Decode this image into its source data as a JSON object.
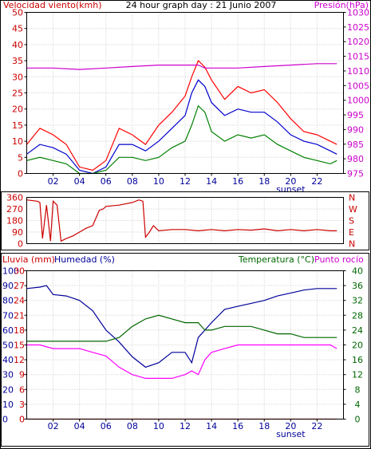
{
  "chart_data": [
    {
      "type": "line",
      "title": "24 hour graph day : 21 Junio 2007",
      "left_label": "Velocidad viento(kmh)",
      "right_label": "Presión(hPa)",
      "x_ticks": [
        "02",
        "04",
        "06",
        "08",
        "10",
        "12",
        "14",
        "16",
        "18",
        "20",
        "22"
      ],
      "x_note": "sunset",
      "x_note_hour": 20,
      "y_left": {
        "min": 0,
        "max": 50,
        "ticks": [
          0,
          5,
          10,
          15,
          20,
          25,
          30,
          35,
          40,
          45,
          50
        ]
      },
      "y_right": {
        "min": 975,
        "max": 1030,
        "ticks": [
          975,
          980,
          985,
          990,
          995,
          1000,
          1005,
          1010,
          1015,
          1020,
          1025,
          1030
        ]
      },
      "grid": true,
      "series": [
        {
          "name": "gusts",
          "axis": "left",
          "color": "#ff0000",
          "x": [
            0,
            1,
            2,
            3,
            4,
            5,
            6,
            7,
            8,
            9,
            10,
            11,
            12,
            12.5,
            13,
            13.5,
            14,
            15,
            16,
            17,
            18,
            19,
            20,
            21,
            22,
            23,
            23.5
          ],
          "y": [
            9,
            14,
            12,
            9,
            2,
            1,
            4,
            14,
            12,
            9,
            15,
            19,
            24,
            30,
            35,
            33,
            29,
            23,
            27,
            25,
            26,
            22,
            17,
            13,
            12,
            10,
            9
          ]
        },
        {
          "name": "average",
          "axis": "left",
          "color": "#0000cc",
          "x": [
            0,
            1,
            2,
            3,
            4,
            5,
            6,
            7,
            8,
            9,
            10,
            11,
            12,
            12.5,
            13,
            13.5,
            14,
            15,
            16,
            17,
            18,
            19,
            20,
            21,
            22,
            23,
            23.5
          ],
          "y": [
            6,
            9,
            8,
            6,
            1,
            0,
            2,
            9,
            9,
            7,
            10,
            14,
            18,
            25,
            29,
            27,
            22,
            18,
            20,
            19,
            19,
            16,
            12,
            10,
            9,
            7,
            6
          ]
        },
        {
          "name": "minimum",
          "axis": "left",
          "color": "#008000",
          "x": [
            0,
            1,
            2,
            3,
            4,
            5,
            6,
            7,
            8,
            9,
            10,
            11,
            12,
            12.5,
            13,
            13.5,
            14,
            15,
            16,
            17,
            18,
            19,
            20,
            21,
            22,
            23,
            23.5
          ],
          "y": [
            4,
            5,
            4,
            3,
            0,
            0,
            1,
            5,
            5,
            4,
            5,
            8,
            10,
            15,
            21,
            19,
            13,
            10,
            12,
            11,
            12,
            9,
            7,
            5,
            4,
            3,
            4
          ]
        },
        {
          "name": "pressure",
          "axis": "right",
          "color": "#cc00cc",
          "x": [
            0,
            2,
            4,
            6,
            8,
            10,
            12,
            13,
            13.5,
            14,
            16,
            18,
            20,
            22,
            23.5
          ],
          "y": [
            1011,
            1011,
            1010.5,
            1011,
            1011.5,
            1012,
            1012,
            1012,
            1011,
            1011,
            1011,
            1011.5,
            1012,
            1012.5,
            1012.5
          ]
        }
      ]
    },
    {
      "type": "line",
      "title": "",
      "right_labels": [
        "N",
        "W",
        "S",
        "E",
        "N"
      ],
      "x_ticks": [],
      "y_left": {
        "min": 0,
        "max": 360,
        "ticks": [
          0,
          90,
          180,
          270,
          360
        ]
      },
      "grid": true,
      "series": [
        {
          "name": "direction",
          "axis": "left",
          "color": "#cc0000",
          "x": [
            0,
            0.8,
            1,
            1.2,
            1.5,
            1.8,
            2,
            2.3,
            2.6,
            3,
            3.5,
            4,
            4.5,
            5,
            5.5,
            5.8,
            6,
            7,
            8,
            8.5,
            8.8,
            9,
            9.3,
            9.6,
            10,
            11,
            12,
            13,
            14,
            15,
            16,
            17,
            18,
            19,
            20,
            21,
            22,
            23,
            23.5
          ],
          "y": [
            340,
            330,
            320,
            40,
            300,
            20,
            330,
            300,
            20,
            40,
            60,
            90,
            120,
            140,
            260,
            270,
            290,
            300,
            320,
            340,
            330,
            50,
            90,
            140,
            100,
            110,
            110,
            100,
            110,
            100,
            110,
            105,
            115,
            100,
            110,
            100,
            110,
            100,
            100
          ]
        }
      ]
    },
    {
      "type": "line",
      "title": "",
      "left_label_1": "Lluvia (mm)",
      "left_label_2": "Humedad (%)",
      "right_label_1": "Temperatura (°C)",
      "right_label_2": "Punto rocío",
      "x_ticks": [
        "02",
        "04",
        "06",
        "08",
        "10",
        "12",
        "14",
        "16",
        "18",
        "20",
        "22"
      ],
      "x_note": "sunset",
      "x_note_hour": 20,
      "y_humidity": {
        "min": 0,
        "max": 100,
        "ticks": [
          0,
          10,
          20,
          30,
          40,
          50,
          60,
          70,
          80,
          90,
          100
        ]
      },
      "y_rain": {
        "min": 0,
        "max": 30,
        "ticks": [
          0,
          3,
          6,
          9,
          12,
          15,
          18,
          21,
          24,
          27,
          30
        ]
      },
      "y_right": {
        "min": 0,
        "max": 40,
        "ticks": [
          0,
          4,
          8,
          12,
          16,
          20,
          24,
          28,
          32,
          36,
          40
        ]
      },
      "grid": true,
      "series": [
        {
          "name": "humidity",
          "axis": "humidity",
          "color": "#000099",
          "x": [
            0,
            1,
            1.5,
            2,
            3,
            4,
            5,
            6,
            7,
            8,
            9,
            10,
            11,
            12,
            12.5,
            13,
            13.5,
            14,
            15,
            16,
            17,
            18,
            19,
            20,
            21,
            22,
            23,
            23.5
          ],
          "y": [
            88,
            89,
            90,
            84,
            83,
            80,
            73,
            60,
            52,
            42,
            35,
            38,
            45,
            45,
            38,
            55,
            60,
            65,
            74,
            76,
            78,
            80,
            83,
            85,
            87,
            88,
            88,
            88
          ]
        },
        {
          "name": "temperature",
          "axis": "right",
          "color": "#006600",
          "x": [
            0,
            1,
            2,
            3,
            4,
            5,
            6,
            7,
            8,
            9,
            10,
            11,
            12,
            13,
            13.5,
            14,
            15,
            16,
            17,
            18,
            19,
            20,
            21,
            22,
            23,
            23.5
          ],
          "y": [
            21,
            21,
            21,
            21,
            21,
            21,
            21,
            22,
            25,
            27,
            28,
            27,
            26,
            26,
            24,
            24,
            25,
            25,
            25,
            24,
            23,
            23,
            22,
            22,
            22,
            22
          ]
        },
        {
          "name": "dew point",
          "axis": "right",
          "color": "#ff00ff",
          "x": [
            0,
            1,
            2,
            3,
            4,
            5,
            6,
            7,
            8,
            9,
            10,
            11,
            12,
            12.5,
            13,
            13.5,
            14,
            15,
            16,
            17,
            18,
            19,
            20,
            21,
            22,
            23,
            23.5
          ],
          "y": [
            20,
            20,
            19,
            19,
            19,
            18,
            17,
            14,
            12,
            11,
            11,
            11,
            12,
            13,
            12,
            16,
            18,
            19,
            20,
            20,
            20,
            20,
            20,
            20,
            20,
            20,
            19
          ]
        },
        {
          "name": "rain",
          "axis": "rain",
          "color": "#ff0000",
          "x": [
            0,
            23.5
          ],
          "y": [
            0,
            0
          ]
        }
      ]
    }
  ]
}
